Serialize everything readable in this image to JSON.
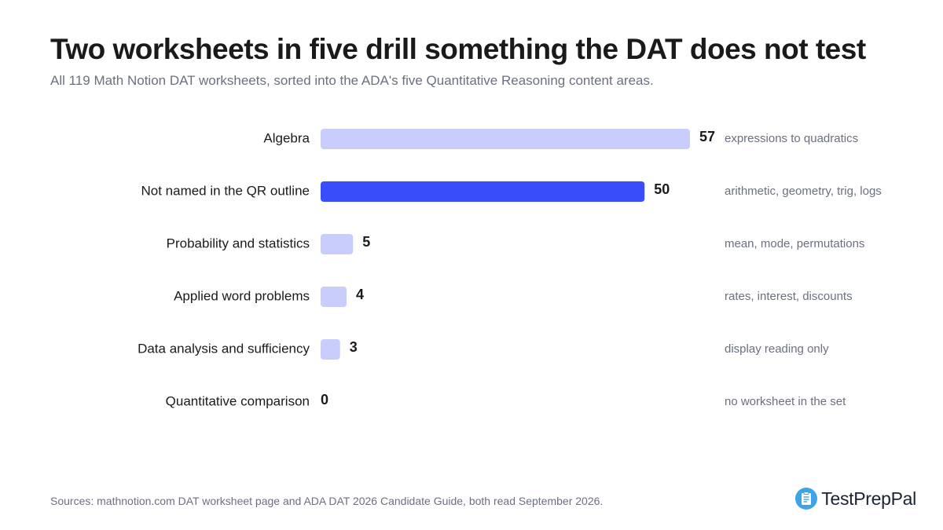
{
  "chart_data": {
    "type": "bar",
    "orientation": "horizontal",
    "title": "Two worksheets in five drill something the DAT does not test",
    "subtitle": "All 119 Math Notion DAT worksheets, sorted into the ADA's five Quantitative Reasoning content areas.",
    "categories": [
      "Algebra",
      "Not named in the QR outline",
      "Probability and statistics",
      "Applied word problems",
      "Data analysis and sufficiency",
      "Quantitative comparison"
    ],
    "values": [
      57,
      50,
      5,
      4,
      3,
      0
    ],
    "annotations": [
      "expressions to quadratics",
      "arithmetic, geometry, trig, logs",
      "mean, mode, permutations",
      "rates, interest, discounts",
      "display reading only",
      "no worksheet in the set"
    ],
    "highlight_index": 1,
    "xlim": [
      0,
      57
    ],
    "grid": false,
    "colors": {
      "bar": "#c8cdfb",
      "highlight": "#3a4dfb",
      "category_label": "#1a1a1a",
      "value_label": "#1a1a1a",
      "annotation": "#6b7080"
    }
  },
  "footer": {
    "source": "Sources: mathnotion.com DAT worksheet page and ADA DAT 2026 Candidate Guide, both read September 2026."
  },
  "brand": {
    "name": "TestPrepPal",
    "icon": "clipboard-logo-icon",
    "color": "#3da4e8"
  }
}
